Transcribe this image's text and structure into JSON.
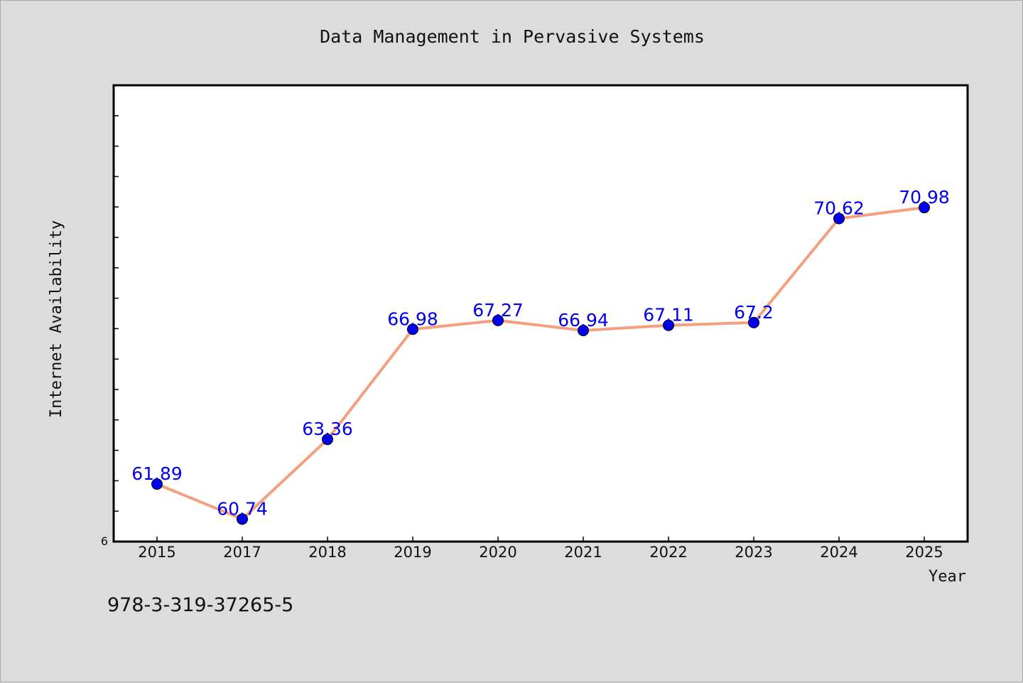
{
  "chart_data": {
    "type": "line",
    "title": "Data Management in Pervasive Systems",
    "xlabel": "Year",
    "ylabel": "Internet Availability",
    "categories": [
      "2015",
      "2017",
      "2018",
      "2019",
      "2020",
      "2021",
      "2022",
      "2023",
      "2024",
      "2025"
    ],
    "series": [
      {
        "values": [
          61.89,
          60.74,
          63.36,
          66.98,
          67.27,
          66.94,
          67.11,
          67.2,
          70.62,
          70.98
        ],
        "labels": [
          "61.89",
          "60.74",
          "63.36",
          "66.98",
          "67.27",
          "66.94",
          "67.11",
          "67.2",
          "70.62",
          "70.98"
        ]
      }
    ],
    "ylim": [
      60,
      75
    ],
    "yticks": [
      60,
      61,
      62,
      63,
      64,
      65,
      66,
      67,
      68,
      69,
      70,
      71,
      72,
      73,
      74,
      75
    ],
    "ytick_labels_shown": [
      "6"
    ],
    "grid": false,
    "legend": "none",
    "line_color": "#f4a07e",
    "marker_color": "#0000ee",
    "plot_background": "#ffffff",
    "page_background": "#dcdcdc"
  },
  "footer": {
    "isbn": "978-3-319-37265-5"
  }
}
